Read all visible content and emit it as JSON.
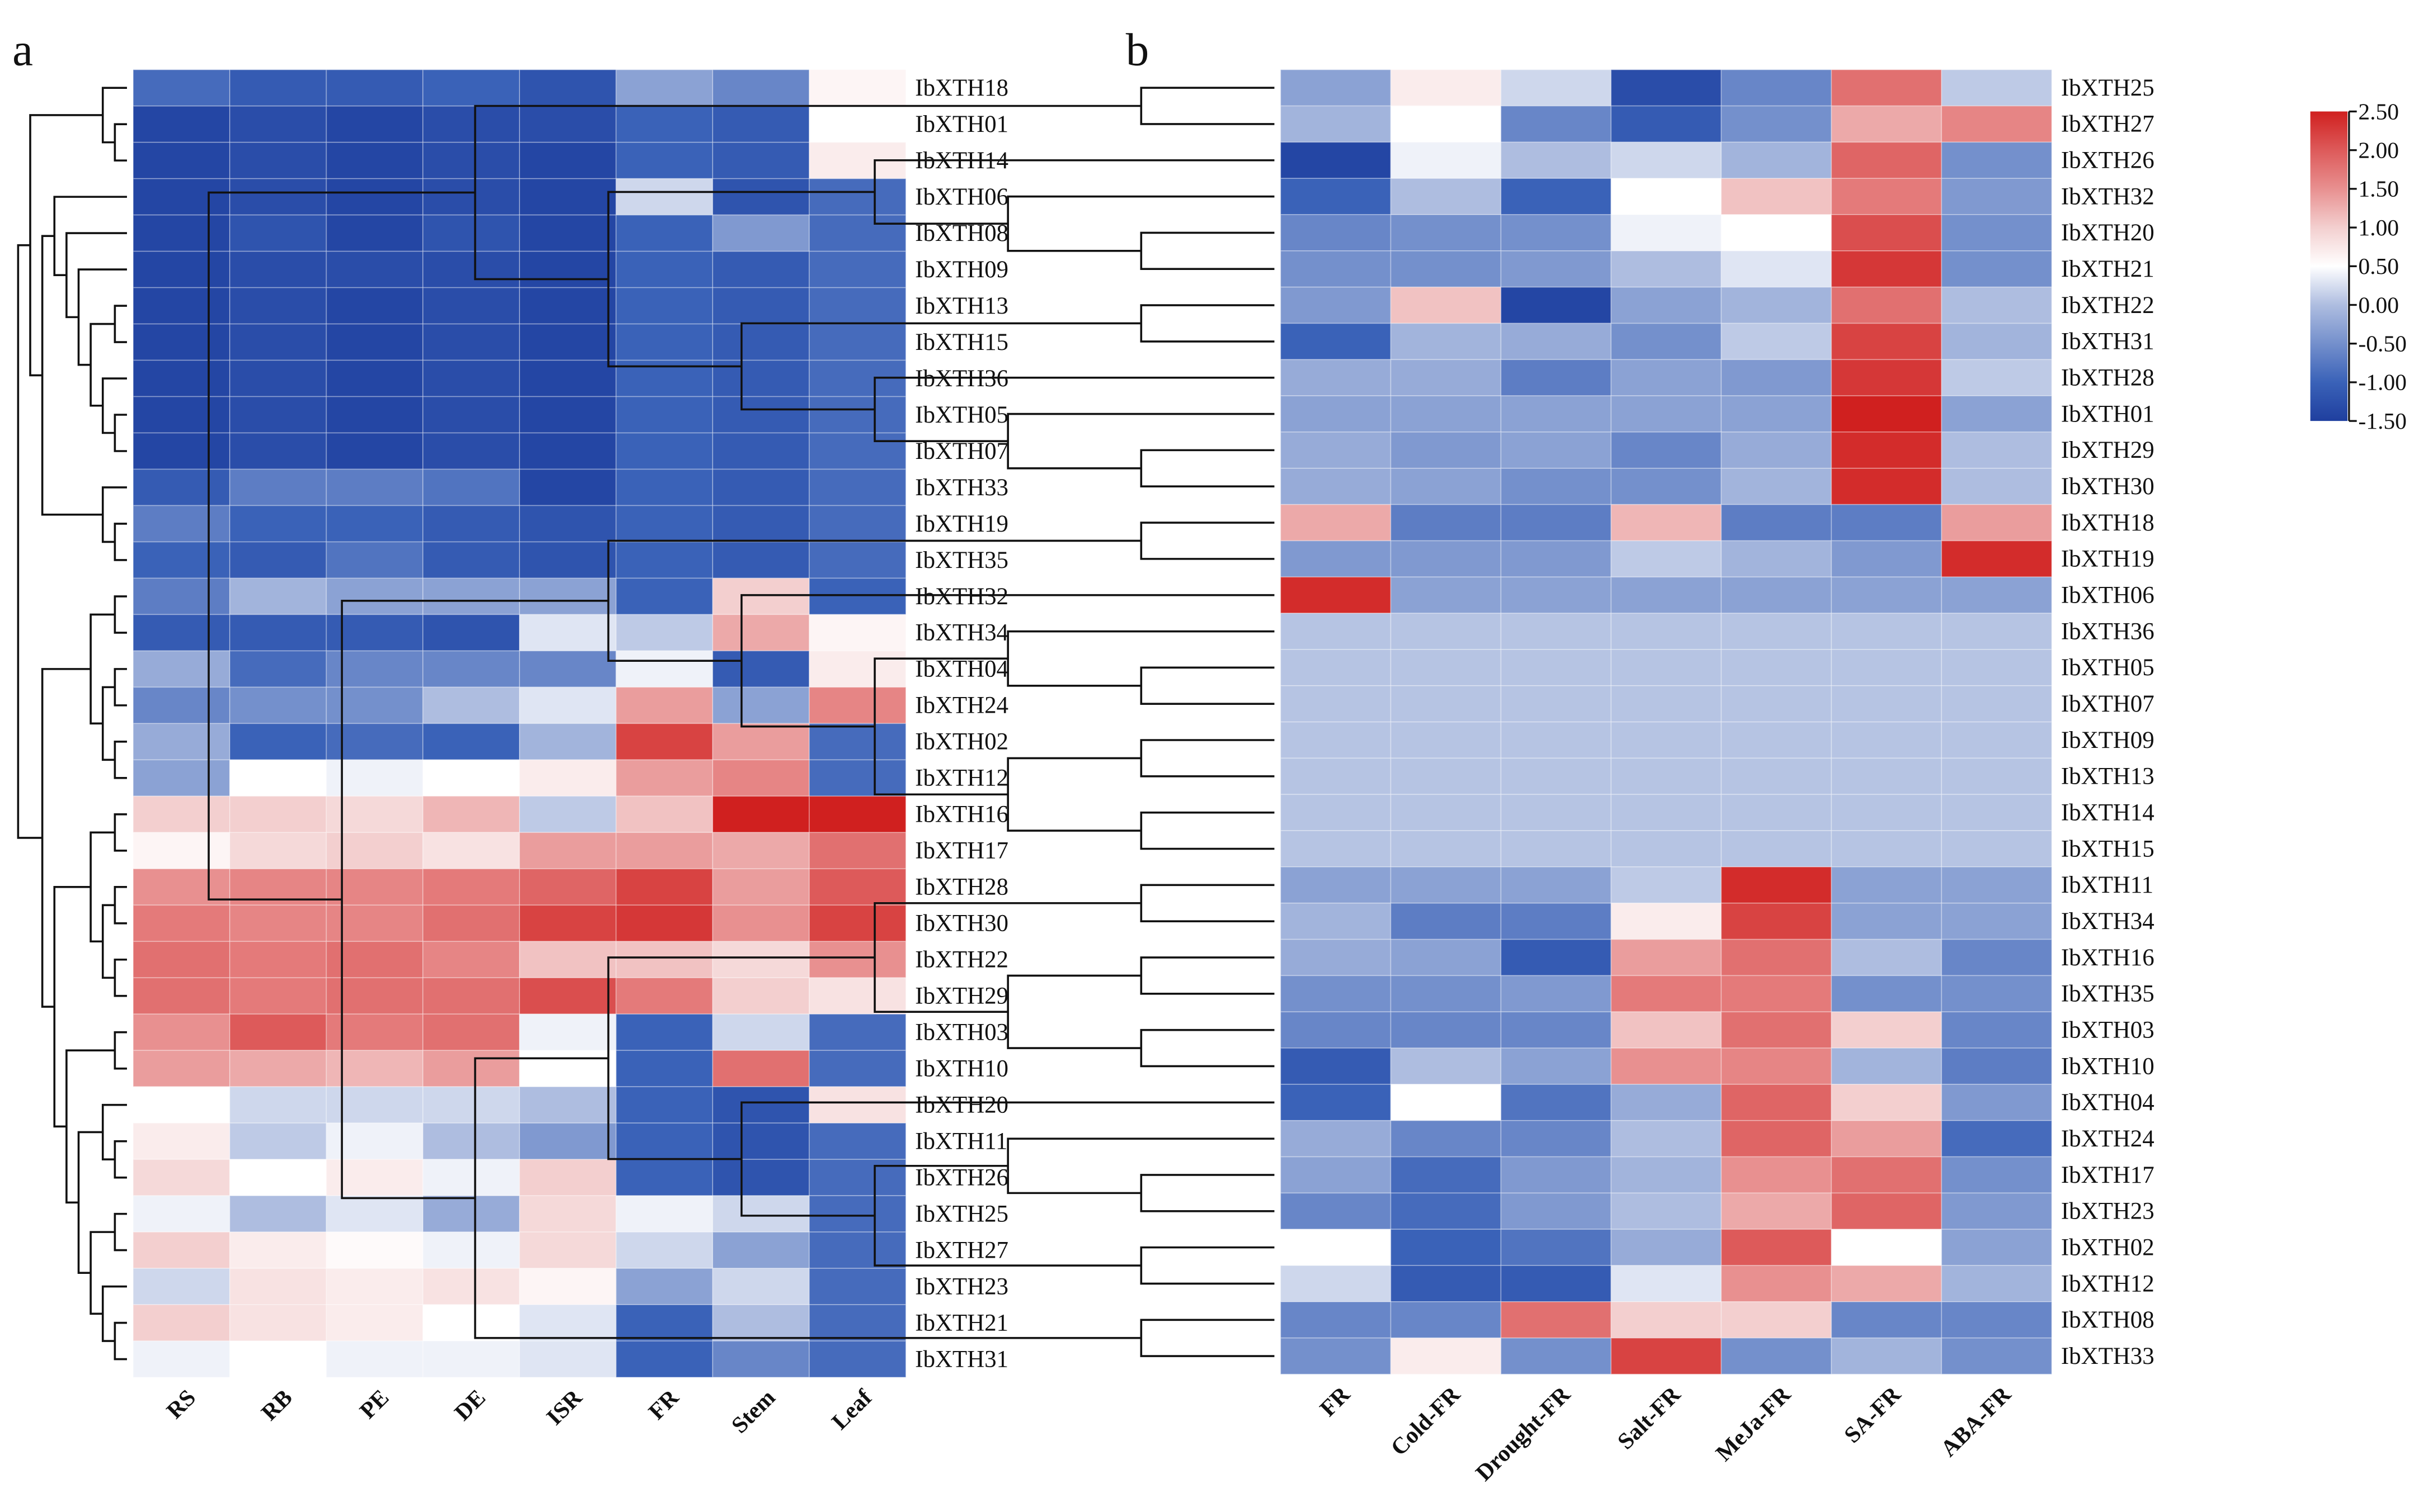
{
  "chart_data": [
    {
      "type": "heatmap",
      "panel_label": "a",
      "columns": [
        "RS",
        "RB",
        "PE",
        "DE",
        "ISR",
        "FR",
        "Stem",
        "Leaf"
      ],
      "rows": [
        "IbXTH18",
        "IbXTH01",
        "IbXTH14",
        "IbXTH06",
        "IbXTH08",
        "IbXTH09",
        "IbXTH13",
        "IbXTH15",
        "IbXTH36",
        "IbXTH05",
        "IbXTH07",
        "IbXTH33",
        "IbXTH19",
        "IbXTH35",
        "IbXTH32",
        "IbXTH34",
        "IbXTH04",
        "IbXTH24",
        "IbXTH02",
        "IbXTH12",
        "IbXTH16",
        "IbXTH17",
        "IbXTH28",
        "IbXTH30",
        "IbXTH22",
        "IbXTH29",
        "IbXTH03",
        "IbXTH10",
        "IbXTH20",
        "IbXTH11",
        "IbXTH26",
        "IbXTH25",
        "IbXTH27",
        "IbXTH23",
        "IbXTH21",
        "IbXTH31"
      ],
      "values": [
        [
          -0.9,
          -1.1,
          -1.1,
          -1.0,
          -1.2,
          -0.3,
          -0.6,
          0.6
        ],
        [
          -1.4,
          -1.3,
          -1.4,
          -1.3,
          -1.3,
          -1.0,
          -1.1,
          0.5
        ],
        [
          -1.4,
          -1.3,
          -1.4,
          -1.3,
          -1.4,
          -1.0,
          -1.1,
          0.7
        ],
        [
          -1.4,
          -1.3,
          -1.4,
          -1.3,
          -1.4,
          0.2,
          -1.2,
          -0.9
        ],
        [
          -1.4,
          -1.2,
          -1.4,
          -1.2,
          -1.4,
          -1.0,
          -0.4,
          -0.9
        ],
        [
          -1.4,
          -1.3,
          -1.3,
          -1.3,
          -1.4,
          -1.0,
          -1.1,
          -0.9
        ],
        [
          -1.4,
          -1.3,
          -1.4,
          -1.3,
          -1.4,
          -1.0,
          -1.1,
          -0.9
        ],
        [
          -1.4,
          -1.3,
          -1.4,
          -1.3,
          -1.4,
          -1.0,
          -1.1,
          -0.9
        ],
        [
          -1.4,
          -1.3,
          -1.4,
          -1.3,
          -1.4,
          -1.0,
          -1.1,
          -0.9
        ],
        [
          -1.4,
          -1.3,
          -1.4,
          -1.3,
          -1.4,
          -1.0,
          -1.1,
          -0.9
        ],
        [
          -1.4,
          -1.3,
          -1.4,
          -1.3,
          -1.4,
          -1.0,
          -1.1,
          -0.9
        ],
        [
          -1.1,
          -0.7,
          -0.7,
          -0.8,
          -1.4,
          -1.0,
          -1.1,
          -0.9
        ],
        [
          -0.7,
          -1.0,
          -1.0,
          -1.1,
          -1.2,
          -1.0,
          -1.1,
          -0.9
        ],
        [
          -1.0,
          -1.1,
          -0.8,
          -1.1,
          -1.2,
          -1.0,
          -1.1,
          -0.9
        ],
        [
          -0.7,
          -0.1,
          -0.3,
          -0.3,
          -0.3,
          -1.0,
          1.0,
          -1.0
        ],
        [
          -1.1,
          -1.1,
          -1.1,
          -1.2,
          0.3,
          0.1,
          1.3,
          0.6
        ],
        [
          -0.2,
          -0.9,
          -0.6,
          -0.6,
          -0.6,
          0.4,
          -1.1,
          0.7
        ],
        [
          -0.6,
          -0.5,
          -0.5,
          0.0,
          0.3,
          1.4,
          -0.3,
          1.6
        ],
        [
          -0.2,
          -1.0,
          -0.9,
          -1.0,
          -0.1,
          2.2,
          1.4,
          -0.9
        ],
        [
          -0.3,
          0.5,
          0.4,
          0.5,
          0.7,
          1.4,
          1.6,
          -0.9
        ],
        [
          1.0,
          1.0,
          0.9,
          1.2,
          0.1,
          1.1,
          2.5,
          2.5
        ],
        [
          0.6,
          0.9,
          1.0,
          0.8,
          1.4,
          1.4,
          1.3,
          1.8
        ],
        [
          1.5,
          1.6,
          1.6,
          1.7,
          1.9,
          2.2,
          1.4,
          2.0
        ],
        [
          1.7,
          1.6,
          1.6,
          1.8,
          2.2,
          2.3,
          1.5,
          2.2
        ],
        [
          1.8,
          1.7,
          1.8,
          1.6,
          1.1,
          1.1,
          0.9,
          1.5
        ],
        [
          1.8,
          1.7,
          1.8,
          1.8,
          2.1,
          1.7,
          1.0,
          0.8
        ],
        [
          1.5,
          2.0,
          1.7,
          1.8,
          0.4,
          -1.0,
          0.2,
          -0.9
        ],
        [
          1.4,
          1.3,
          1.2,
          1.4,
          0.5,
          -1.0,
          1.8,
          -0.9
        ],
        [
          0.5,
          0.2,
          0.2,
          0.2,
          0.0,
          -1.0,
          -1.2,
          0.8
        ],
        [
          0.7,
          0.1,
          0.4,
          0.0,
          -0.4,
          -1.0,
          -1.2,
          -0.9
        ],
        [
          0.9,
          0.5,
          0.7,
          0.4,
          1.0,
          -1.0,
          -1.2,
          -0.9
        ],
        [
          0.4,
          0.0,
          0.3,
          -0.2,
          0.9,
          0.4,
          0.2,
          -0.9
        ],
        [
          1.0,
          0.7,
          0.55,
          0.4,
          0.9,
          0.2,
          -0.3,
          -0.9
        ],
        [
          0.2,
          0.8,
          0.7,
          0.8,
          0.6,
          -0.3,
          0.2,
          -0.9
        ],
        [
          1.0,
          0.8,
          0.7,
          0.5,
          0.3,
          -1.0,
          0.0,
          -0.9
        ],
        [
          0.4,
          0.5,
          0.4,
          0.4,
          0.3,
          -1.0,
          -0.6,
          -0.9
        ]
      ],
      "row_dendrogram": [
        [
          [
            0,
            [
              1,
              2
            ]
          ],
          [
            [
              3,
              [
                4,
                [
                  5,
                  [
                    [
                      6,
                      7
                    ],
                    [
                      8,
                      [
                        9,
                        10
                      ]
                    ]
                  ]
                ]
              ]
            ],
            [
              11,
              [
                12,
                13
              ]
            ]
          ]
        ],
        [
          [
            [
              14,
              15
            ],
            [
              [
                16,
                17
              ],
              [
                18,
                19
              ]
            ]
          ],
          [
            [
              [
                20,
                21
              ],
              [
                [
                  22,
                  23
                ],
                [
                  24,
                  25
                ]
              ]
            ],
            [
              [
                26,
                27
              ],
              [
                [
                  28,
                  [
                    29,
                    30
                  ]
                ],
                [
                  [
                    31,
                    32
                  ],
                  [
                    33,
                    [
                      34,
                      35
                    ]
                  ]
                ]
              ]
            ]
          ]
        ]
      ]
    },
    {
      "type": "heatmap",
      "panel_label": "b",
      "columns": [
        "FR",
        "Cold-FR",
        "Drought-FR",
        "Salt-FR",
        "MeJa-FR",
        "SA-FR",
        "ABA-FR"
      ],
      "rows": [
        "IbXTH25",
        "IbXTH27",
        "IbXTH26",
        "IbXTH32",
        "IbXTH20",
        "IbXTH21",
        "IbXTH22",
        "IbXTH31",
        "IbXTH28",
        "IbXTH01",
        "IbXTH29",
        "IbXTH30",
        "IbXTH18",
        "IbXTH19",
        "IbXTH06",
        "IbXTH36",
        "IbXTH05",
        "IbXTH07",
        "IbXTH09",
        "IbXTH13",
        "IbXTH14",
        "IbXTH15",
        "IbXTH11",
        "IbXTH34",
        "IbXTH16",
        "IbXTH35",
        "IbXTH03",
        "IbXTH10",
        "IbXTH04",
        "IbXTH24",
        "IbXTH17",
        "IbXTH23",
        "IbXTH02",
        "IbXTH12",
        "IbXTH08",
        "IbXTH33"
      ],
      "values": [
        [
          -0.3,
          0.7,
          0.2,
          -1.3,
          -0.6,
          1.8,
          0.1
        ],
        [
          -0.1,
          0.5,
          -0.6,
          -1.1,
          -0.5,
          1.3,
          1.6
        ],
        [
          -1.4,
          0.4,
          0.0,
          0.2,
          -0.1,
          1.9,
          -0.5
        ],
        [
          -1.0,
          0.0,
          -1.0,
          0.5,
          1.1,
          1.7,
          -0.4
        ],
        [
          -0.6,
          -0.5,
          -0.5,
          0.4,
          0.5,
          2.1,
          -0.5
        ],
        [
          -0.5,
          -0.5,
          -0.4,
          0.0,
          0.3,
          2.3,
          -0.5
        ],
        [
          -0.4,
          1.1,
          -1.4,
          -0.3,
          -0.1,
          1.8,
          0.0
        ],
        [
          -1.0,
          -0.1,
          -0.2,
          -0.5,
          0.1,
          2.2,
          -0.1
        ],
        [
          -0.2,
          -0.2,
          -0.7,
          -0.3,
          -0.4,
          2.3,
          0.1
        ],
        [
          -0.3,
          -0.3,
          -0.3,
          -0.3,
          -0.3,
          2.5,
          -0.3
        ],
        [
          -0.2,
          -0.4,
          -0.3,
          -0.6,
          -0.2,
          2.4,
          0.0
        ],
        [
          -0.2,
          -0.3,
          -0.5,
          -0.5,
          -0.1,
          2.4,
          0.0
        ],
        [
          1.3,
          -0.7,
          -0.7,
          1.2,
          -0.7,
          -0.7,
          1.4
        ],
        [
          -0.4,
          -0.4,
          -0.4,
          0.1,
          -0.1,
          -0.4,
          2.4
        ],
        [
          2.4,
          -0.3,
          -0.3,
          -0.3,
          -0.3,
          -0.3,
          -0.3
        ],
        [
          0.05,
          0.05,
          0.05,
          0.05,
          0.05,
          0.05,
          0.05
        ],
        [
          0.05,
          0.05,
          0.05,
          0.05,
          0.05,
          0.05,
          0.05
        ],
        [
          0.05,
          0.05,
          0.05,
          0.05,
          0.05,
          0.05,
          0.05
        ],
        [
          0.05,
          0.05,
          0.05,
          0.05,
          0.05,
          0.05,
          0.05
        ],
        [
          0.05,
          0.05,
          0.05,
          0.05,
          0.05,
          0.05,
          0.05
        ],
        [
          0.05,
          0.05,
          0.05,
          0.05,
          0.05,
          0.05,
          0.05
        ],
        [
          0.05,
          0.05,
          0.05,
          0.05,
          0.05,
          0.05,
          0.05
        ],
        [
          -0.3,
          -0.3,
          -0.3,
          0.1,
          2.4,
          -0.3,
          -0.3
        ],
        [
          -0.1,
          -0.7,
          -0.7,
          0.7,
          2.2,
          -0.3,
          -0.3
        ],
        [
          -0.2,
          -0.3,
          -1.1,
          1.4,
          1.8,
          0.0,
          -0.6
        ],
        [
          -0.5,
          -0.5,
          -0.4,
          1.7,
          1.7,
          -0.5,
          -0.5
        ],
        [
          -0.6,
          -0.6,
          -0.6,
          1.1,
          1.8,
          1.0,
          -0.6
        ],
        [
          -1.1,
          0.0,
          -0.3,
          1.5,
          1.6,
          -0.1,
          -0.7
        ],
        [
          -1.0,
          0.5,
          -0.8,
          -0.2,
          1.9,
          1.0,
          -0.4
        ],
        [
          -0.2,
          -0.6,
          -0.6,
          0.0,
          1.9,
          1.4,
          -0.9
        ],
        [
          -0.3,
          -0.9,
          -0.4,
          -0.1,
          1.5,
          1.8,
          -0.5
        ],
        [
          -0.6,
          -0.9,
          -0.4,
          0.0,
          1.3,
          1.9,
          -0.4
        ],
        [
          0.5,
          -1.0,
          -0.8,
          -0.2,
          2.0,
          0.5,
          -0.3
        ],
        [
          0.2,
          -1.1,
          -1.1,
          0.3,
          1.5,
          1.3,
          -0.1
        ],
        [
          -0.6,
          -0.6,
          1.8,
          1.0,
          1.0,
          -0.6,
          -0.6
        ],
        [
          -0.5,
          0.7,
          -0.5,
          2.2,
          -0.5,
          -0.1,
          -0.5
        ]
      ],
      "row_dendrogram": [
        [
          [
            0,
            1
          ],
          [
            [
              2,
              [
                3,
                [
                  4,
                  5
                ]
              ]
            ],
            [
              [
                6,
                7
              ],
              [
                8,
                [
                  9,
                  [
                    10,
                    11
                  ]
                ]
              ]
            ]
          ]
        ],
        [
          [
            [
              12,
              13
            ],
            [
              14,
              [
                [
                  15,
                  [
                    16,
                    17
                  ]
                ],
                [
                  [
                    18,
                    19
                  ],
                  [
                    20,
                    21
                  ]
                ]
              ]
            ]
          ],
          [
            [
              [
                [
                  22,
                  23
                ],
                [
                  [
                    24,
                    25
                  ],
                  [
                    26,
                    27
                  ]
                ]
              ],
              [
                28,
                [
                  [
                    29,
                    [
                      30,
                      31
                    ]
                  ],
                  [
                    32,
                    33
                  ]
                ]
              ]
            ],
            [
              34,
              35
            ]
          ]
        ]
      ]
    }
  ],
  "colorbar": {
    "range": [
      -1.5,
      2.5
    ],
    "ticks": [
      "2.50",
      "2.00",
      "1.50",
      "1.00",
      "0.50",
      "0.00",
      "-0.50",
      "-1.00",
      "-1.50"
    ],
    "colors": {
      "low": "#1f3f9f",
      "mid": "#ffffff",
      "high": "#d0201f"
    }
  }
}
